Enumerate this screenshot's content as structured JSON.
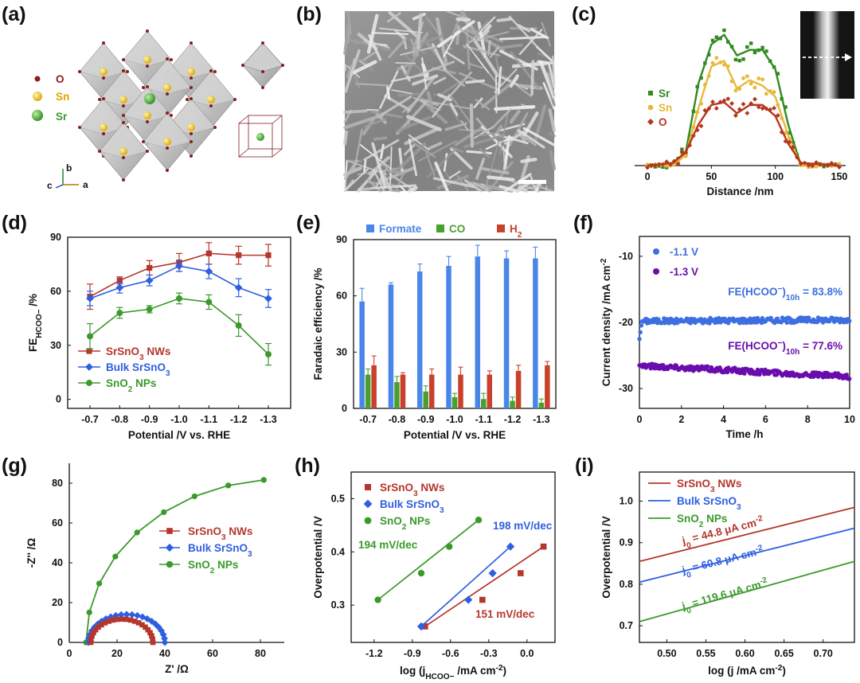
{
  "panels": {
    "a": {
      "label": "(a)",
      "legend": [
        {
          "symbol": "dark-red-dot",
          "text": "O",
          "color": "#8b1c1c"
        },
        {
          "symbol": "yellow-ball",
          "text": "Sn",
          "color": "#d9a500"
        },
        {
          "symbol": "green-ball",
          "text": "Sr",
          "color": "#3a9a2a"
        }
      ],
      "axes_labels": {
        "b": "b",
        "c": "c",
        "a": "a"
      }
    },
    "b": {
      "label": "(b)"
    },
    "c": {
      "label": "(c)"
    },
    "d": {
      "label": "(d)"
    },
    "e": {
      "label": "(e)"
    },
    "f": {
      "label": "(f)"
    },
    "g": {
      "label": "(g)"
    },
    "h": {
      "label": "(h)"
    },
    "i": {
      "label": "(i)"
    }
  },
  "colors": {
    "red": "#b5362c",
    "blue": "#2e5fe0",
    "green": "#3a9a2a",
    "formate": "#4a86e8",
    "co": "#49a02c",
    "h2": "#c8412b",
    "f_blue": "#3d6fe0",
    "f_purple": "#6a0dad",
    "c_green": "#2f8a1f",
    "c_yellow": "#e8b83a",
    "c_red": "#b5361e"
  },
  "chart_data": [
    {
      "id": "c",
      "type": "line",
      "title": "",
      "xlabel": "Distance /nm",
      "ylabel": "",
      "xlim": [
        -10,
        155
      ],
      "xticks": [
        0,
        50,
        100,
        150
      ],
      "series": [
        {
          "name": "Sr",
          "color": "#2f8a1f",
          "x": [
            0,
            20,
            30,
            40,
            50,
            60,
            70,
            80,
            90,
            100,
            110,
            120,
            150
          ],
          "values": [
            0,
            0,
            10,
            60,
            88,
            95,
            80,
            84,
            84,
            70,
            30,
            0,
            0
          ]
        },
        {
          "name": "Sn",
          "color": "#e8b83a",
          "x": [
            0,
            20,
            30,
            40,
            50,
            60,
            70,
            80,
            90,
            100,
            110,
            120,
            150
          ],
          "values": [
            0,
            0,
            8,
            42,
            72,
            76,
            56,
            62,
            58,
            50,
            22,
            0,
            0
          ]
        },
        {
          "name": "O",
          "color": "#b5361e",
          "x": [
            0,
            20,
            30,
            40,
            50,
            60,
            70,
            80,
            90,
            100,
            110,
            120,
            150
          ],
          "values": [
            0,
            2,
            10,
            30,
            44,
            46,
            38,
            44,
            44,
            36,
            16,
            2,
            0
          ]
        }
      ]
    },
    {
      "id": "d",
      "type": "line",
      "title": "",
      "xlabel": "Potential /V vs. RHE",
      "ylabel": "FE",
      "ylabel_sub": "HCOO−",
      "ylabel_tail": " /%",
      "categories": [
        "-0.7",
        "-0.8",
        "-0.9",
        "-1.0",
        "-1.1",
        "-1.2",
        "-1.3"
      ],
      "ylim": [
        -5,
        90
      ],
      "yticks": [
        0,
        30,
        60,
        90
      ],
      "series": [
        {
          "name_base": "SrSnO",
          "name_sub": "3",
          "name_tail": " NWs",
          "color": "#b5362c",
          "marker": "square",
          "values": [
            57,
            66,
            73,
            76,
            81,
            80,
            80
          ],
          "err": [
            7,
            2,
            4,
            5,
            6,
            5,
            6
          ]
        },
        {
          "name_base": "Bulk SrSnO",
          "name_sub": "3",
          "name_tail": "",
          "color": "#2e5fe0",
          "marker": "diamond",
          "values": [
            56,
            62,
            66,
            74,
            71,
            62,
            56
          ],
          "err": [
            4,
            3,
            3,
            3,
            4,
            5,
            5
          ]
        },
        {
          "name_base": "SnO",
          "name_sub": "2",
          "name_tail": " NPs",
          "color": "#3a9a2a",
          "marker": "circle",
          "values": [
            35,
            48,
            50,
            56,
            54,
            41,
            25
          ],
          "err": [
            7,
            3,
            2,
            3,
            4,
            6,
            6
          ]
        }
      ]
    },
    {
      "id": "e",
      "type": "bar",
      "title": "",
      "xlabel": "Potential /V vs. RHE",
      "ylabel": "Faradaic efficiency /%",
      "categories": [
        "-0.7",
        "-0.8",
        "-0.9",
        "-1.0",
        "-1.1",
        "-1.2",
        "-1.3"
      ],
      "ylim": [
        0,
        90
      ],
      "yticks": [
        0,
        30,
        60,
        90
      ],
      "series": [
        {
          "name": "Formate",
          "color": "#4a86e8",
          "values": [
            57,
            66,
            73,
            76,
            81,
            80,
            80
          ],
          "err": [
            7,
            1,
            4,
            5,
            6,
            4,
            6
          ]
        },
        {
          "name": "CO",
          "color": "#49a02c",
          "values": [
            18,
            14,
            9,
            6,
            5,
            4,
            3
          ],
          "err": [
            3,
            3,
            3,
            2,
            3,
            2,
            2
          ]
        },
        {
          "name": "H",
          "name_sub": "2",
          "color": "#c8412b",
          "values": [
            23,
            18,
            18,
            18,
            18,
            20,
            23
          ],
          "err": [
            5,
            1,
            3,
            4,
            2,
            3,
            2
          ]
        }
      ]
    },
    {
      "id": "f",
      "type": "scatter",
      "title": "",
      "xlabel": "Time /h",
      "ylabel": "Current density /mA cm",
      "ylabel_sup": "-2",
      "xlim": [
        0,
        10
      ],
      "xticks": [
        0,
        2,
        4,
        6,
        8,
        10
      ],
      "ylim": [
        -33,
        -7
      ],
      "yticks": [
        -10,
        -20,
        -30
      ],
      "series": [
        {
          "name": "-1.1 V",
          "color": "#3d6fe0",
          "start": -19.8,
          "end": -19.6,
          "dip": -22.5,
          "annotation_base": "FE(HCOO",
          "annotation_sup": "−",
          "annotation_mid": ")",
          "annotation_sub": "10h",
          "annotation_tail": " = 83.8%"
        },
        {
          "name": "-1.3 V",
          "color": "#6a0dad",
          "start": -26.5,
          "end": -28.2,
          "dip": -26.5,
          "annotation_base": "FE(HCOO",
          "annotation_sup": "−",
          "annotation_mid": ")",
          "annotation_sub": "10h",
          "annotation_tail": " = 77.6%"
        }
      ]
    },
    {
      "id": "g",
      "type": "scatter",
      "title": "",
      "xlabel": "Z' /Ω",
      "ylabel": "-Z'' /Ω",
      "xlim": [
        0,
        90
      ],
      "xticks": [
        0,
        20,
        40,
        60,
        80
      ],
      "ylim": [
        0,
        90
      ],
      "yticks": [
        0,
        20,
        40,
        60,
        80
      ],
      "series": [
        {
          "name_base": "SrSnO",
          "name_sub": "3",
          "name_tail": " NWs",
          "color": "#b5362c",
          "marker": "square",
          "center": 22,
          "radius": 13,
          "y_scale": 0.9
        },
        {
          "name_base": "Bulk SrSnO",
          "name_sub": "3",
          "name_tail": "",
          "color": "#2e5fe0",
          "marker": "diamond",
          "center": 24,
          "radius": 16,
          "y_scale": 0.88
        },
        {
          "name_base": "SnO",
          "name_sub": "2",
          "name_tail": " NPs",
          "color": "#3a9a2a",
          "marker": "circle",
          "center": 89,
          "radius": 82,
          "y_scale": 1.0
        }
      ]
    },
    {
      "id": "h",
      "type": "scatter",
      "title": "",
      "xlabel": "log (j",
      "xlabel_sub": "HCOO−",
      "xlabel_tail": " /mA cm",
      "xlabel_sup": "-2",
      "xlabel_end": ")",
      "ylabel": "Overpotential /V",
      "xlim": [
        -1.38,
        0.22
      ],
      "xticks": [
        -1.2,
        -0.9,
        -0.6,
        -0.3,
        0.0
      ],
      "xtick_labels": [
        "-1.2",
        "-0.9",
        "-0.6",
        "-0.3",
        "0.0"
      ],
      "ylim": [
        0.23,
        0.55
      ],
      "yticks": [
        0.3,
        0.4,
        0.5
      ],
      "series": [
        {
          "name_base": "SrSnO",
          "name_sub": "3",
          "name_tail": " NWs",
          "color": "#b5362c",
          "marker": "square",
          "x": [
            -0.8,
            -0.35,
            -0.05,
            0.13
          ],
          "values": [
            0.26,
            0.31,
            0.36,
            0.41
          ],
          "slope_label": "151 mV/dec"
        },
        {
          "name_base": "Bulk SrSnO",
          "name_sub": "3",
          "name_tail": "",
          "color": "#2e5fe0",
          "marker": "diamond",
          "x": [
            -0.83,
            -0.46,
            -0.27,
            -0.13
          ],
          "values": [
            0.26,
            0.31,
            0.36,
            0.41
          ],
          "slope_label": "198 mV/dec"
        },
        {
          "name_base": "SnO",
          "name_sub": "2",
          "name_tail": " NPs",
          "color": "#3a9a2a",
          "marker": "circle",
          "x": [
            -1.17,
            -0.83,
            -0.61,
            -0.38
          ],
          "values": [
            0.31,
            0.36,
            0.41,
            0.46
          ],
          "slope_label": "194 mV/dec"
        }
      ]
    },
    {
      "id": "i",
      "type": "line",
      "title": "",
      "xlabel": "log (j /mA cm",
      "xlabel_sup": "-2",
      "xlabel_end": ")",
      "ylabel": "Overpotential /V",
      "xlim": [
        0.465,
        0.74
      ],
      "xticks": [
        0.5,
        0.55,
        0.6,
        0.65,
        0.7
      ],
      "xtick_labels": [
        "0.50",
        "0.55",
        "0.60",
        "0.65",
        "0.70"
      ],
      "ylim": [
        0.66,
        1.07
      ],
      "yticks": [
        0.7,
        0.8,
        0.9,
        1.0
      ],
      "series": [
        {
          "name_base": "SrSnO",
          "name_sub": "3",
          "name_tail": " NWs",
          "color": "#b5362c",
          "x": [
            0.465,
            0.74
          ],
          "values": [
            0.855,
            0.985
          ],
          "j0_base": "j",
          "j0_sub": "0",
          "j0_val": " = 44.8 μA cm",
          "j0_sup": "-2"
        },
        {
          "name_base": "Bulk SrSnO",
          "name_sub": "3",
          "name_tail": "",
          "color": "#2e5fe0",
          "x": [
            0.465,
            0.74
          ],
          "values": [
            0.805,
            0.935
          ],
          "j0_base": "j",
          "j0_sub": "0",
          "j0_val": " = 60.8 μA cm",
          "j0_sup": "-2"
        },
        {
          "name_base": "SnO",
          "name_sub": "2",
          "name_tail": " NPs",
          "color": "#3a9a2a",
          "x": [
            0.465,
            0.74
          ],
          "values": [
            0.71,
            0.855
          ],
          "j0_base": "j",
          "j0_sub": "0",
          "j0_val": " = 119.6 μA cm",
          "j0_sup": "-2"
        }
      ]
    }
  ]
}
